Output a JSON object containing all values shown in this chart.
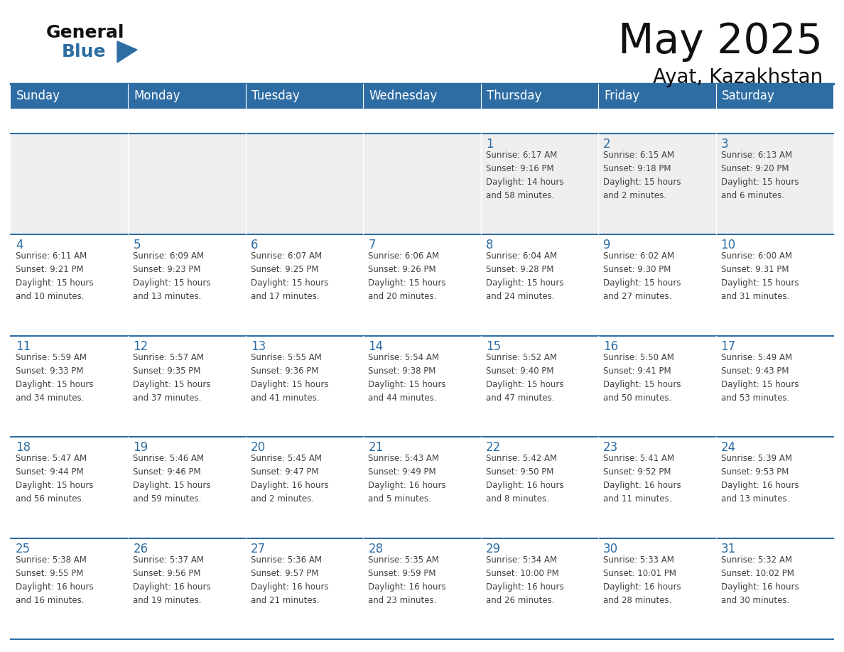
{
  "title": "May 2025",
  "subtitle": "Ayat, Kazakhstan",
  "header_bg": "#2E6DA4",
  "header_text_color": "#FFFFFF",
  "cell_bg": "#FFFFFF",
  "row1_bg": "#EFEFEF",
  "day_number_color": "#2E6DA4",
  "info_text_color": "#404040",
  "separator_color": "#2E6DA4",
  "days_of_week": [
    "Sunday",
    "Monday",
    "Tuesday",
    "Wednesday",
    "Thursday",
    "Friday",
    "Saturday"
  ],
  "weeks": [
    [
      {
        "day": "",
        "info": ""
      },
      {
        "day": "",
        "info": ""
      },
      {
        "day": "",
        "info": ""
      },
      {
        "day": "",
        "info": ""
      },
      {
        "day": "1",
        "info": "Sunrise: 6:17 AM\nSunset: 9:16 PM\nDaylight: 14 hours\nand 58 minutes."
      },
      {
        "day": "2",
        "info": "Sunrise: 6:15 AM\nSunset: 9:18 PM\nDaylight: 15 hours\nand 2 minutes."
      },
      {
        "day": "3",
        "info": "Sunrise: 6:13 AM\nSunset: 9:20 PM\nDaylight: 15 hours\nand 6 minutes."
      }
    ],
    [
      {
        "day": "4",
        "info": "Sunrise: 6:11 AM\nSunset: 9:21 PM\nDaylight: 15 hours\nand 10 minutes."
      },
      {
        "day": "5",
        "info": "Sunrise: 6:09 AM\nSunset: 9:23 PM\nDaylight: 15 hours\nand 13 minutes."
      },
      {
        "day": "6",
        "info": "Sunrise: 6:07 AM\nSunset: 9:25 PM\nDaylight: 15 hours\nand 17 minutes."
      },
      {
        "day": "7",
        "info": "Sunrise: 6:06 AM\nSunset: 9:26 PM\nDaylight: 15 hours\nand 20 minutes."
      },
      {
        "day": "8",
        "info": "Sunrise: 6:04 AM\nSunset: 9:28 PM\nDaylight: 15 hours\nand 24 minutes."
      },
      {
        "day": "9",
        "info": "Sunrise: 6:02 AM\nSunset: 9:30 PM\nDaylight: 15 hours\nand 27 minutes."
      },
      {
        "day": "10",
        "info": "Sunrise: 6:00 AM\nSunset: 9:31 PM\nDaylight: 15 hours\nand 31 minutes."
      }
    ],
    [
      {
        "day": "11",
        "info": "Sunrise: 5:59 AM\nSunset: 9:33 PM\nDaylight: 15 hours\nand 34 minutes."
      },
      {
        "day": "12",
        "info": "Sunrise: 5:57 AM\nSunset: 9:35 PM\nDaylight: 15 hours\nand 37 minutes."
      },
      {
        "day": "13",
        "info": "Sunrise: 5:55 AM\nSunset: 9:36 PM\nDaylight: 15 hours\nand 41 minutes."
      },
      {
        "day": "14",
        "info": "Sunrise: 5:54 AM\nSunset: 9:38 PM\nDaylight: 15 hours\nand 44 minutes."
      },
      {
        "day": "15",
        "info": "Sunrise: 5:52 AM\nSunset: 9:40 PM\nDaylight: 15 hours\nand 47 minutes."
      },
      {
        "day": "16",
        "info": "Sunrise: 5:50 AM\nSunset: 9:41 PM\nDaylight: 15 hours\nand 50 minutes."
      },
      {
        "day": "17",
        "info": "Sunrise: 5:49 AM\nSunset: 9:43 PM\nDaylight: 15 hours\nand 53 minutes."
      }
    ],
    [
      {
        "day": "18",
        "info": "Sunrise: 5:47 AM\nSunset: 9:44 PM\nDaylight: 15 hours\nand 56 minutes."
      },
      {
        "day": "19",
        "info": "Sunrise: 5:46 AM\nSunset: 9:46 PM\nDaylight: 15 hours\nand 59 minutes."
      },
      {
        "day": "20",
        "info": "Sunrise: 5:45 AM\nSunset: 9:47 PM\nDaylight: 16 hours\nand 2 minutes."
      },
      {
        "day": "21",
        "info": "Sunrise: 5:43 AM\nSunset: 9:49 PM\nDaylight: 16 hours\nand 5 minutes."
      },
      {
        "day": "22",
        "info": "Sunrise: 5:42 AM\nSunset: 9:50 PM\nDaylight: 16 hours\nand 8 minutes."
      },
      {
        "day": "23",
        "info": "Sunrise: 5:41 AM\nSunset: 9:52 PM\nDaylight: 16 hours\nand 11 minutes."
      },
      {
        "day": "24",
        "info": "Sunrise: 5:39 AM\nSunset: 9:53 PM\nDaylight: 16 hours\nand 13 minutes."
      }
    ],
    [
      {
        "day": "25",
        "info": "Sunrise: 5:38 AM\nSunset: 9:55 PM\nDaylight: 16 hours\nand 16 minutes."
      },
      {
        "day": "26",
        "info": "Sunrise: 5:37 AM\nSunset: 9:56 PM\nDaylight: 16 hours\nand 19 minutes."
      },
      {
        "day": "27",
        "info": "Sunrise: 5:36 AM\nSunset: 9:57 PM\nDaylight: 16 hours\nand 21 minutes."
      },
      {
        "day": "28",
        "info": "Sunrise: 5:35 AM\nSunset: 9:59 PM\nDaylight: 16 hours\nand 23 minutes."
      },
      {
        "day": "29",
        "info": "Sunrise: 5:34 AM\nSunset: 10:00 PM\nDaylight: 16 hours\nand 26 minutes."
      },
      {
        "day": "30",
        "info": "Sunrise: 5:33 AM\nSunset: 10:01 PM\nDaylight: 16 hours\nand 28 minutes."
      },
      {
        "day": "31",
        "info": "Sunrise: 5:32 AM\nSunset: 10:02 PM\nDaylight: 16 hours\nand 30 minutes."
      }
    ]
  ]
}
